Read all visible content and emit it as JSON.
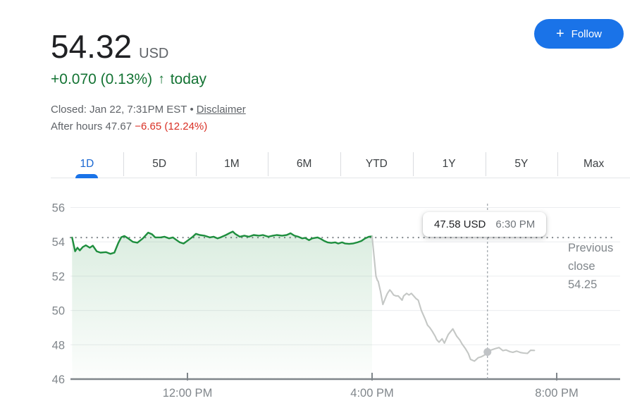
{
  "header": {
    "price": "54.32",
    "currency": "USD",
    "change": {
      "text": "+0.070 (0.13%)",
      "arrow": "↑",
      "period": "today"
    },
    "status": {
      "closed_text": "Closed: Jan 22, 7:31PM EST",
      "separator": "•",
      "disclaimer": "Disclaimer"
    },
    "after_hours": {
      "label": "After hours",
      "price": "47.67",
      "change": "−6.65 (12.24%)"
    },
    "follow": {
      "plus": "+",
      "label": "Follow"
    }
  },
  "tabs": [
    {
      "label": "1D",
      "active": true
    },
    {
      "label": "5D",
      "active": false
    },
    {
      "label": "1M",
      "active": false
    },
    {
      "label": "6M",
      "active": false
    },
    {
      "label": "YTD",
      "active": false
    },
    {
      "label": "1Y",
      "active": false
    },
    {
      "label": "5Y",
      "active": false
    },
    {
      "label": "Max",
      "active": false
    }
  ],
  "chart_data": {
    "type": "line",
    "title": "1D intraday price chart",
    "x_axis": {
      "unit": "minutes since 9:30 AM",
      "range": [
        0,
        715
      ],
      "ticks": [
        {
          "t": 150,
          "label": "12:00 PM"
        },
        {
          "t": 390,
          "label": "4:00 PM"
        },
        {
          "t": 630,
          "label": "8:00 PM"
        }
      ]
    },
    "y_axis": {
      "range": [
        44.3,
        57.0
      ],
      "ticks": [
        46,
        48,
        50,
        52,
        54,
        56
      ]
    },
    "previous_close": {
      "value": 54.25,
      "label_lines": [
        "Previous",
        "close",
        "54.25"
      ]
    },
    "grid": true,
    "legend_position": "none",
    "series": [
      {
        "name": "regular-session",
        "color": "#1e8e3e",
        "area": true,
        "points": [
          [
            0,
            54.25
          ],
          [
            4,
            53.45
          ],
          [
            7,
            53.66
          ],
          [
            10,
            53.5
          ],
          [
            14,
            53.7
          ],
          [
            18,
            53.8
          ],
          [
            23,
            53.66
          ],
          [
            27,
            53.78
          ],
          [
            32,
            53.45
          ],
          [
            37,
            53.37
          ],
          [
            44,
            53.4
          ],
          [
            50,
            53.3
          ],
          [
            55,
            53.37
          ],
          [
            60,
            53.93
          ],
          [
            64,
            54.27
          ],
          [
            68,
            54.34
          ],
          [
            73,
            54.2
          ],
          [
            79,
            54.0
          ],
          [
            85,
            53.95
          ],
          [
            92,
            54.2
          ],
          [
            99,
            54.54
          ],
          [
            104,
            54.44
          ],
          [
            108,
            54.26
          ],
          [
            115,
            54.26
          ],
          [
            120,
            54.3
          ],
          [
            126,
            54.2
          ],
          [
            131,
            54.26
          ],
          [
            136,
            54.1
          ],
          [
            140,
            53.97
          ],
          [
            145,
            53.9
          ],
          [
            151,
            54.1
          ],
          [
            157,
            54.3
          ],
          [
            161,
            54.47
          ],
          [
            166,
            54.4
          ],
          [
            172,
            54.36
          ],
          [
            179,
            54.26
          ],
          [
            184,
            54.3
          ],
          [
            189,
            54.2
          ],
          [
            193,
            54.26
          ],
          [
            200,
            54.4
          ],
          [
            206,
            54.54
          ],
          [
            209,
            54.6
          ],
          [
            212,
            54.47
          ],
          [
            218,
            54.3
          ],
          [
            224,
            54.36
          ],
          [
            230,
            54.3
          ],
          [
            236,
            54.4
          ],
          [
            243,
            54.36
          ],
          [
            248,
            54.4
          ],
          [
            255,
            54.3
          ],
          [
            261,
            54.36
          ],
          [
            266,
            54.4
          ],
          [
            273,
            54.36
          ],
          [
            279,
            54.4
          ],
          [
            284,
            54.5
          ],
          [
            289,
            54.36
          ],
          [
            294,
            54.3
          ],
          [
            299,
            54.2
          ],
          [
            303,
            54.23
          ],
          [
            308,
            54.1
          ],
          [
            312,
            54.2
          ],
          [
            319,
            54.26
          ],
          [
            323,
            54.18
          ],
          [
            328,
            54.05
          ],
          [
            332,
            53.97
          ],
          [
            337,
            53.94
          ],
          [
            342,
            53.97
          ],
          [
            346,
            53.9
          ],
          [
            351,
            53.97
          ],
          [
            355,
            53.9
          ],
          [
            360,
            53.88
          ],
          [
            365,
            53.9
          ],
          [
            371,
            53.97
          ],
          [
            376,
            54.05
          ],
          [
            381,
            54.2
          ],
          [
            386,
            54.3
          ],
          [
            390,
            54.32
          ]
        ]
      },
      {
        "name": "after-hours",
        "color": "#c4c7c5",
        "area": false,
        "points": [
          [
            390,
            54.32
          ],
          [
            392,
            53.4
          ],
          [
            395,
            52.0
          ],
          [
            397,
            51.75
          ],
          [
            398,
            51.7
          ],
          [
            401,
            51.1
          ],
          [
            404,
            50.35
          ],
          [
            408,
            50.8
          ],
          [
            410,
            51.0
          ],
          [
            413,
            51.2
          ],
          [
            415,
            51.1
          ],
          [
            418,
            50.9
          ],
          [
            421,
            50.85
          ],
          [
            424,
            50.85
          ],
          [
            429,
            50.6
          ],
          [
            431,
            50.85
          ],
          [
            435,
            51.0
          ],
          [
            438,
            50.9
          ],
          [
            441,
            51.0
          ],
          [
            444,
            50.85
          ],
          [
            447,
            50.7
          ],
          [
            450,
            50.6
          ],
          [
            454,
            50.0
          ],
          [
            459,
            49.5
          ],
          [
            462,
            49.15
          ],
          [
            465,
            49.0
          ],
          [
            468,
            48.8
          ],
          [
            472,
            48.5
          ],
          [
            474,
            48.3
          ],
          [
            477,
            48.15
          ],
          [
            481,
            48.35
          ],
          [
            484,
            48.1
          ],
          [
            489,
            48.6
          ],
          [
            495,
            48.93
          ],
          [
            500,
            48.5
          ],
          [
            504,
            48.28
          ],
          [
            507,
            48.05
          ],
          [
            511,
            47.8
          ],
          [
            515,
            47.5
          ],
          [
            518,
            47.15
          ],
          [
            523,
            47.05
          ],
          [
            528,
            47.25
          ],
          [
            532,
            47.3
          ],
          [
            536,
            47.4
          ],
          [
            540,
            47.58
          ],
          [
            545,
            47.7
          ],
          [
            550,
            47.78
          ],
          [
            555,
            47.84
          ],
          [
            560,
            47.66
          ],
          [
            564,
            47.7
          ],
          [
            569,
            47.6
          ],
          [
            573,
            47.56
          ],
          [
            578,
            47.63
          ],
          [
            583,
            47.55
          ],
          [
            587,
            47.52
          ],
          [
            592,
            47.5
          ],
          [
            596,
            47.68
          ],
          [
            601,
            47.67
          ]
        ]
      }
    ],
    "highlight": {
      "t": 540,
      "value": 47.58,
      "marker_color": "#c0c3c6",
      "tooltip": {
        "price": "47.58 USD",
        "time": "6:30 PM"
      }
    }
  },
  "colors": {
    "accent_blue": "#1a73e8",
    "green_text": "#137333",
    "red_text": "#d93025",
    "muted_text": "#5f6368",
    "axis_text": "#80868b",
    "grid_line": "#ebedef",
    "axis_line": "#80868b",
    "crosshair": "#9aa0a6"
  }
}
